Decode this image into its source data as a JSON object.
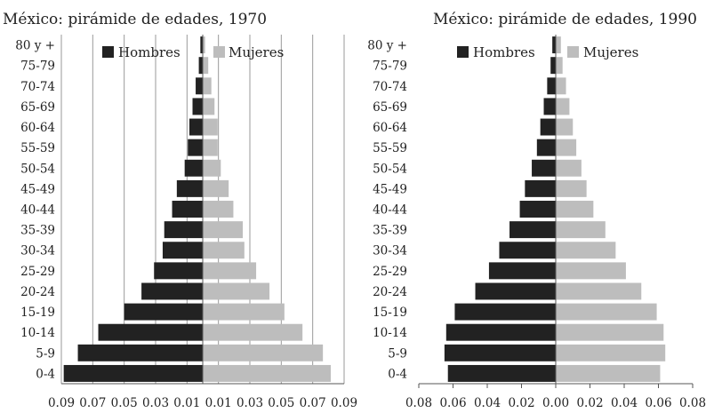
{
  "chart_data": [
    {
      "type": "bar",
      "title": "México: pirámide de edades, 1970",
      "categories": [
        "0-4",
        "5-9",
        "10-14",
        "15-19",
        "20-24",
        "25-29",
        "30-34",
        "35-39",
        "40-44",
        "45-49",
        "50-54",
        "55-59",
        "60-64",
        "65-69",
        "70-74",
        "75-79",
        "80 y +"
      ],
      "series": [
        {
          "name": "Hombres",
          "color": "#222222",
          "values": [
            -0.0885,
            -0.0795,
            -0.0665,
            -0.05,
            -0.039,
            -0.031,
            -0.0255,
            -0.0245,
            -0.0195,
            -0.0165,
            -0.0115,
            -0.0095,
            -0.0085,
            -0.0065,
            -0.0045,
            -0.0025,
            -0.0015
          ]
        },
        {
          "name": "Mujeres",
          "color": "#bdbdbd",
          "values": [
            0.0815,
            0.0765,
            0.0635,
            0.052,
            0.0425,
            0.034,
            0.0265,
            0.0255,
            0.0195,
            0.0165,
            0.0115,
            0.0095,
            0.0095,
            0.0075,
            0.0055,
            0.0035,
            0.0015
          ]
        }
      ],
      "xticks": [
        "0.09",
        "0.07",
        "0.05",
        "0.03",
        "0.01",
        "0.01",
        "0.03",
        "0.05",
        "0.07",
        "0.09"
      ],
      "xlim": [
        -0.09,
        0.09
      ],
      "grid": true,
      "legend": "top"
    },
    {
      "type": "bar",
      "title": "México: pirámide de edades, 1990",
      "categories": [
        "0-4",
        "5-9",
        "10-14",
        "15-19",
        "20-24",
        "25-29",
        "30-34",
        "35-39",
        "40-44",
        "45-49",
        "50-54",
        "55-59",
        "60-64",
        "65-69",
        "70-74",
        "75-79",
        "80 y +"
      ],
      "series": [
        {
          "name": "Hombres",
          "color": "#222222",
          "values": [
            -0.063,
            -0.065,
            -0.064,
            -0.059,
            -0.047,
            -0.039,
            -0.033,
            -0.027,
            -0.021,
            -0.018,
            -0.014,
            -0.011,
            -0.009,
            -0.007,
            -0.005,
            -0.003,
            -0.002
          ]
        },
        {
          "name": "Mujeres",
          "color": "#bdbdbd",
          "values": [
            0.061,
            0.064,
            0.063,
            0.059,
            0.05,
            0.041,
            0.035,
            0.029,
            0.022,
            0.018,
            0.015,
            0.012,
            0.01,
            0.008,
            0.006,
            0.004,
            0.003
          ]
        }
      ],
      "xticks": [
        "0.08",
        "0.06",
        "0.04",
        "0.02",
        "0.00",
        "0.02",
        "0.04",
        "0.06",
        "0.08"
      ],
      "xlim": [
        -0.08,
        0.08
      ],
      "grid": false,
      "legend": "top"
    }
  ]
}
